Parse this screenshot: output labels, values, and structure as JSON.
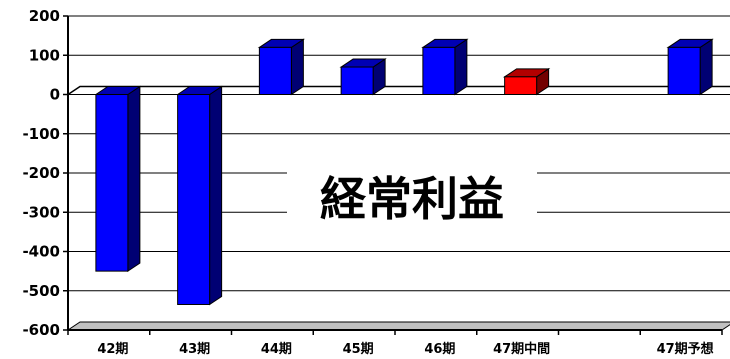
{
  "chart_data": {
    "type": "bar",
    "title": "経常利益",
    "categories": [
      "42期",
      "43期",
      "44期",
      "45期",
      "46期",
      "47期中間",
      "",
      "47期予想"
    ],
    "values": [
      -450,
      -535,
      120,
      70,
      120,
      45,
      null,
      120
    ],
    "bar_colors": [
      "#0000ff",
      "#0000ff",
      "#0000ff",
      "#0000ff",
      "#0000ff",
      "#ff0000",
      null,
      "#0000ff"
    ],
    "ylim": [
      -600,
      200
    ],
    "yticks": [
      200,
      100,
      0,
      -100,
      -200,
      -300,
      -400,
      -500,
      -600
    ],
    "ytick_labels": [
      "200",
      "100",
      "0",
      "-100",
      "-200",
      "-300",
      "-400",
      "-500",
      "-600"
    ],
    "grid": true,
    "style": "3d"
  }
}
